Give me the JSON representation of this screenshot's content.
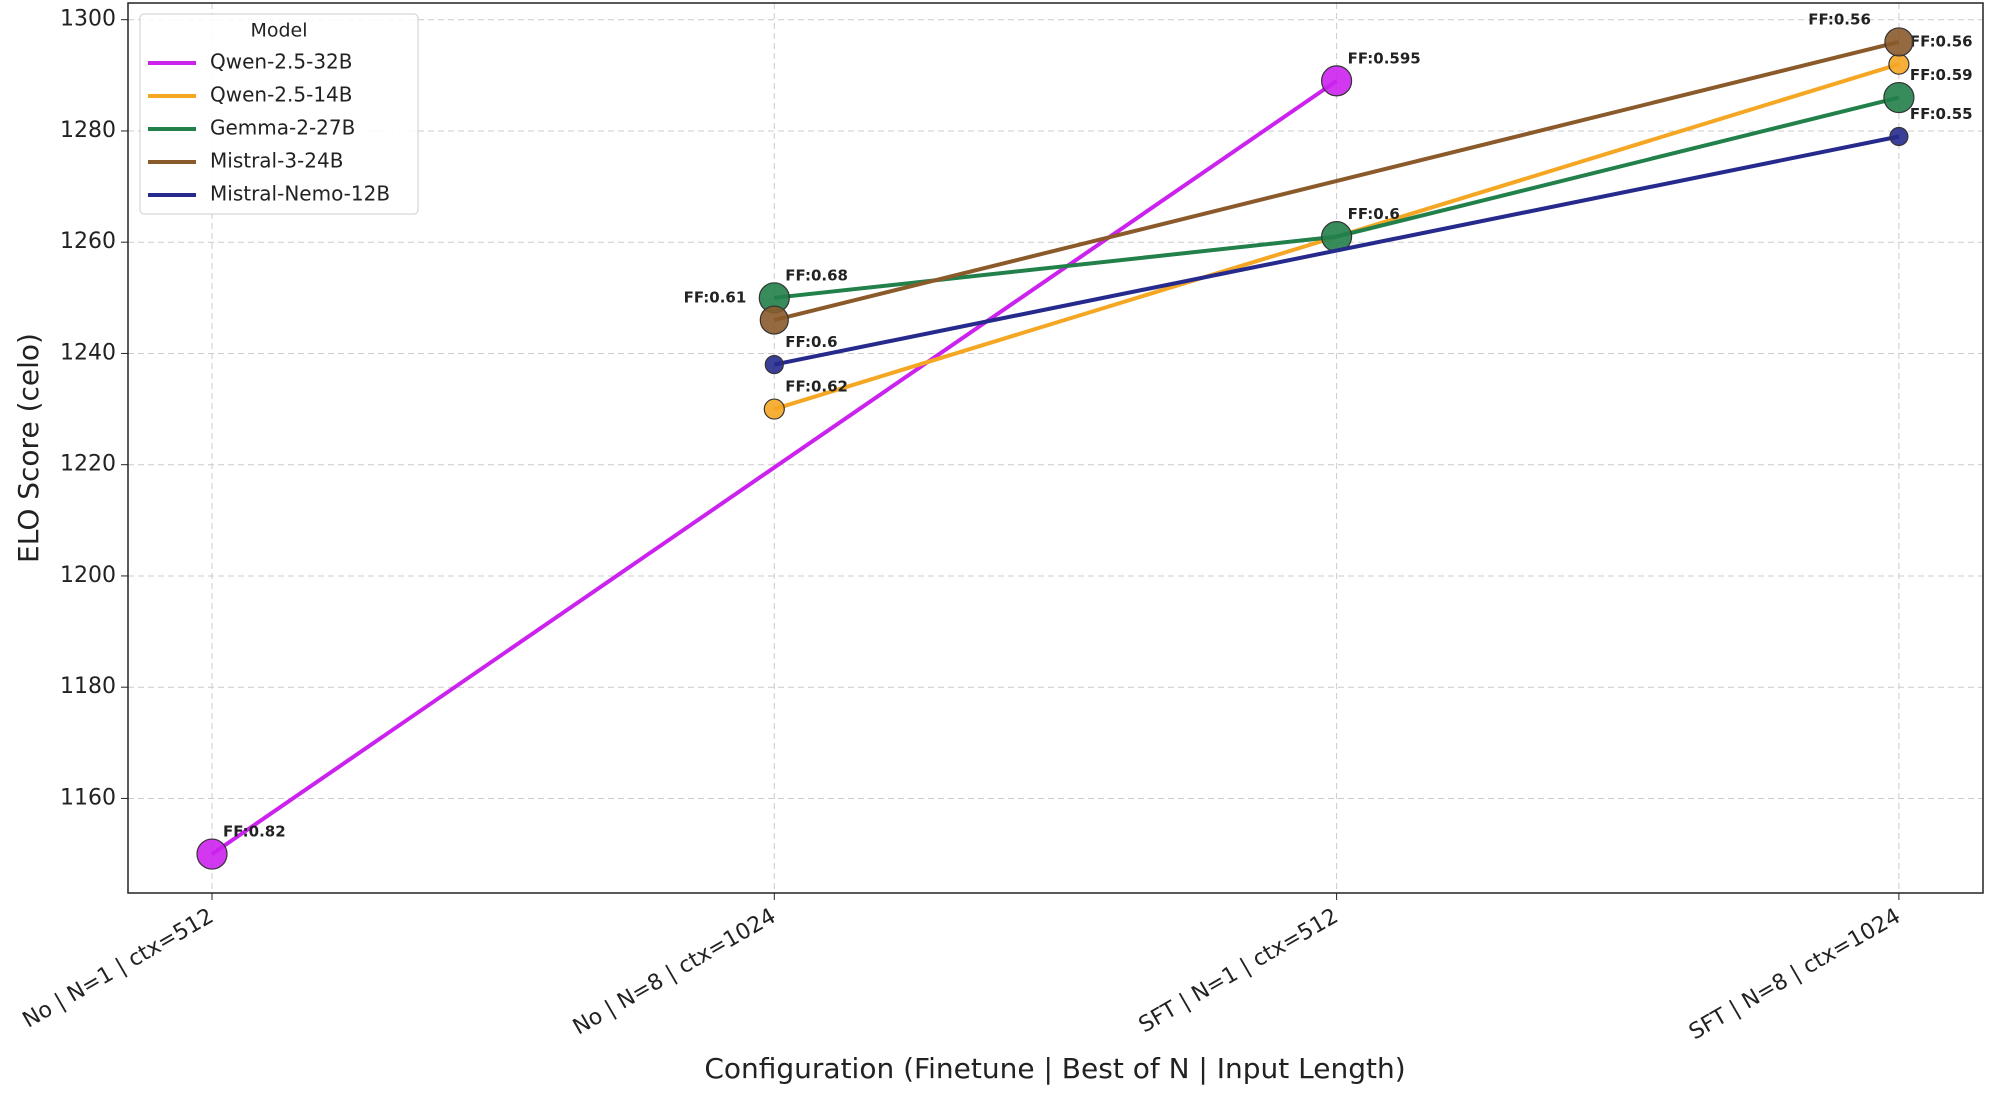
{
  "chart_data": {
    "type": "line",
    "xlabel": "Configuration (Finetune | Best of N | Input Length)",
    "ylabel": "ELO Score (celo)",
    "categories": [
      "No | N=1 | ctx=512",
      "No | N=8 | ctx=1024",
      "SFT | N=1 | ctx=512",
      "SFT | N=8 | ctx=1024"
    ],
    "ylim": [
      1143,
      1303
    ],
    "yticks": [
      1160,
      1180,
      1200,
      1220,
      1240,
      1260,
      1280,
      1300
    ],
    "grid": true,
    "legend_title": "Model",
    "legend_position": "upper left",
    "series": [
      {
        "name": "Qwen-2.5-32B",
        "color": "#cc22ee",
        "x": [
          "No | N=1 | ctx=512",
          "SFT | N=1 | ctx=512"
        ],
        "values": [
          1150,
          1289
        ],
        "point_labels": [
          "FF:0.82",
          "FF:0.595"
        ]
      },
      {
        "name": "Qwen-2.5-14B",
        "color": "#f5a623",
        "x": [
          "No | N=8 | ctx=1024",
          "SFT | N=8 | ctx=1024"
        ],
        "values": [
          1230,
          1292
        ],
        "point_labels": [
          "FF:0.62",
          "FF:0.56"
        ]
      },
      {
        "name": "Gemma-2-27B",
        "color": "#22804a",
        "x": [
          "No | N=8 | ctx=1024",
          "SFT | N=1 | ctx=512",
          "SFT | N=8 | ctx=1024"
        ],
        "values": [
          1250,
          1261,
          1286
        ],
        "point_labels": [
          "FF:0.68",
          "FF:0.6",
          "FF:0.59"
        ]
      },
      {
        "name": "Mistral-3-24B",
        "color": "#8b5a2b",
        "x": [
          "No | N=8 | ctx=1024",
          "SFT | N=8 | ctx=1024"
        ],
        "values": [
          1246,
          1296
        ],
        "point_labels": [
          "FF:0.61",
          "FF:0.56"
        ]
      },
      {
        "name": "Mistral-Nemo-12B",
        "color": "#262a8c",
        "x": [
          "No | N=8 | ctx=1024",
          "SFT | N=8 | ctx=1024"
        ],
        "values": [
          1238,
          1279
        ],
        "point_labels": [
          "FF:0.6",
          "FF:0.55"
        ]
      }
    ]
  }
}
